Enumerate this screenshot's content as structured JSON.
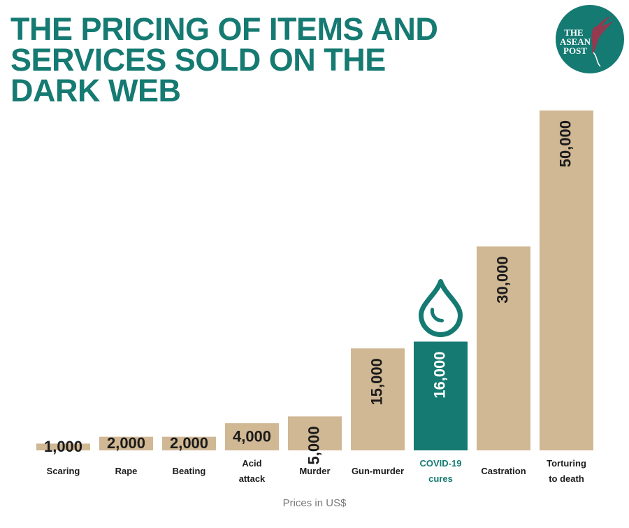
{
  "title_lines": [
    "THE PRICING OF ITEMS AND",
    "SERVICES SOLD ON THE",
    "DARK WEB"
  ],
  "logo": {
    "lines": [
      "THE",
      "ASEAN",
      "POST"
    ],
    "color": "#157a72"
  },
  "footnote": "Prices in US$",
  "colors": {
    "bar": "#d0b894",
    "highlight": "#157a72",
    "title": "#157a72"
  },
  "chart_data": {
    "type": "bar",
    "title": "THE PRICING OF ITEMS AND SERVICES SOLD ON THE DARK WEB",
    "xlabel": "",
    "ylabel": "Prices in US$",
    "categories": [
      "Scaring",
      "Rape",
      "Beating",
      "Acid attack",
      "Murder",
      "Gun-murder",
      "COVID-19 cures",
      "Castration",
      "Torturing to death"
    ],
    "category_label_lines": [
      [
        "Scaring"
      ],
      [
        "Rape"
      ],
      [
        "Beating"
      ],
      [
        "Acid",
        "attack"
      ],
      [
        "Murder"
      ],
      [
        "Gun-murder"
      ],
      [
        "COVID-19",
        "cures"
      ],
      [
        "Castration"
      ],
      [
        "Torturing",
        "to death"
      ]
    ],
    "values": [
      1000,
      2000,
      2000,
      4000,
      5000,
      15000,
      16000,
      30000,
      50000
    ],
    "value_labels": [
      "1,000",
      "2,000",
      "2,000",
      "4,000",
      "5,000",
      "15,000",
      "16,000",
      "30,000",
      "50,000"
    ],
    "highlight_index": 6,
    "highlight_icon": "water-drop-icon",
    "ylim": [
      0,
      50000
    ],
    "grid": false,
    "legend": "none"
  }
}
